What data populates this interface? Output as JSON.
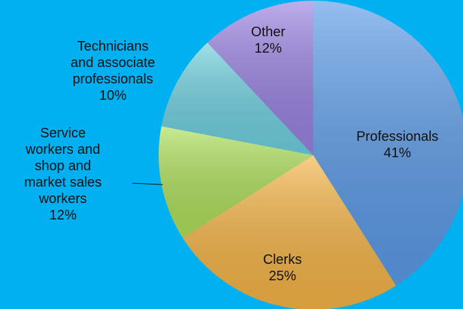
{
  "chart_data": {
    "type": "pie",
    "categories": [
      "Professionals",
      "Clerks",
      "Service workers and shop and market sales workers",
      "Technicians and associate professionals",
      "Other"
    ],
    "values": [
      41,
      25,
      12,
      10,
      12
    ],
    "value_labels": [
      "41%",
      "25%",
      "12%",
      "10%",
      "12%"
    ],
    "colors": [
      "#5b9be8",
      "#f5b445",
      "#aee05a",
      "#6fd0e0",
      "#9a82e2"
    ]
  }
}
